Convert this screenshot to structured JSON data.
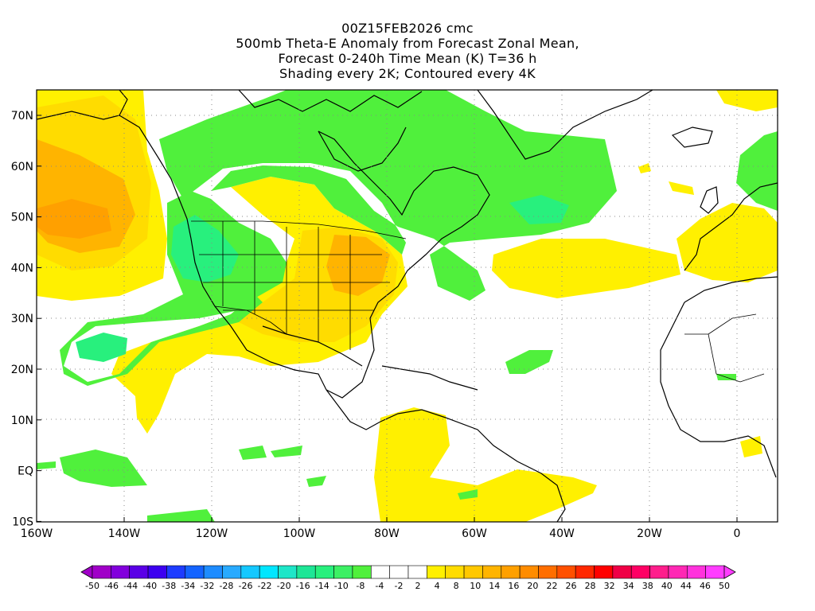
{
  "title": {
    "line1": "00Z15FEB2026 cmc",
    "line2": "500mb Theta-E Anomaly from Forecast Zonal Mean,",
    "line3": "Forecast 0-240h Time Mean (K) T=36 h",
    "line4": "Shading every 2K; Contoured every 4K"
  },
  "map": {
    "lon_ticks": [
      "160W",
      "140W",
      "120W",
      "100W",
      "80W",
      "60W",
      "40W",
      "20W",
      "0"
    ],
    "lat_ticks": [
      "70N",
      "60N",
      "50N",
      "40N",
      "30N",
      "20N",
      "10N",
      "EQ",
      "10S"
    ],
    "lon_range": [
      -160,
      10
    ],
    "lat_range": [
      -10,
      75
    ],
    "grid": "dotted"
  },
  "colorbar": {
    "labels": [
      "-50",
      "-46",
      "-44",
      "-40",
      "-38",
      "-34",
      "-32",
      "-28",
      "-26",
      "-22",
      "-20",
      "-16",
      "-14",
      "-10",
      "-8",
      "-4",
      "-2",
      "2",
      "4",
      "8",
      "10",
      "14",
      "16",
      "20",
      "22",
      "26",
      "28",
      "32",
      "34",
      "38",
      "40",
      "44",
      "46",
      "50"
    ],
    "colors": [
      "#a000c8",
      "#8200dc",
      "#5a00e6",
      "#3c00f0",
      "#1e3cff",
      "#1464ff",
      "#1e8cff",
      "#28aaff",
      "#14c8ff",
      "#00e6ff",
      "#1ee6c8",
      "#1ee696",
      "#28f07d",
      "#3cf064",
      "#50f03c",
      "#ffffff",
      "#ffffff",
      "#ffffff",
      "#fff000",
      "#ffdc00",
      "#ffc800",
      "#ffb400",
      "#ffa000",
      "#ff8c00",
      "#ff6e00",
      "#ff5000",
      "#ff2800",
      "#ff0000",
      "#f00046",
      "#ff0064",
      "#ff1e8c",
      "#ff28b4",
      "#ff32dc",
      "#ff3cff"
    ]
  }
}
